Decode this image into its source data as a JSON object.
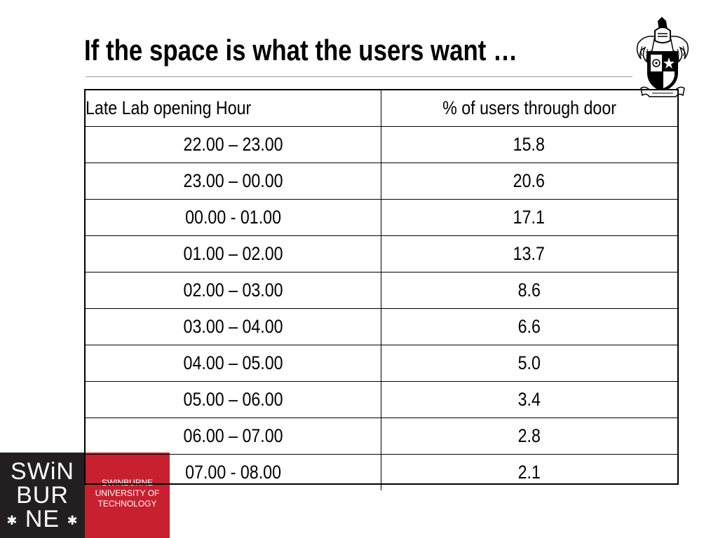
{
  "slide": {
    "title": "If the space is what the users want …"
  },
  "table": {
    "headers": [
      "Late Lab opening Hour",
      "% of users through door"
    ],
    "rows": [
      {
        "hour": "22.00 – 23.00",
        "percent": "15.8"
      },
      {
        "hour": "23.00 – 00.00",
        "percent": "20.6"
      },
      {
        "hour": "00.00 - 01.00",
        "percent": "17.1"
      },
      {
        "hour": "01.00 – 02.00",
        "percent": "13.7"
      },
      {
        "hour": "02.00 – 03.00",
        "percent": "8.6"
      },
      {
        "hour": "03.00 – 04.00",
        "percent": "6.6"
      },
      {
        "hour": "04.00 – 05.00",
        "percent": "5.0"
      },
      {
        "hour": "05.00 – 06.00",
        "percent": "3.4"
      },
      {
        "hour": "06.00 – 07.00",
        "percent": "2.8"
      },
      {
        "hour": "07.00 - 08.00",
        "percent": "2.1"
      }
    ]
  },
  "logo": {
    "word_line_1": "SWiN",
    "word_line_2": "BUR",
    "word_line_3": "NE",
    "flower_glyph": "✱",
    "caption_line_1": "SWINBURNE",
    "caption_line_2": "UNIVERSITY OF",
    "caption_line_3": "TECHNOLOGY",
    "black_color": "#231f20",
    "red_color": "#c8202f"
  },
  "crest": {
    "icon": "coat-of-arms-icon"
  }
}
